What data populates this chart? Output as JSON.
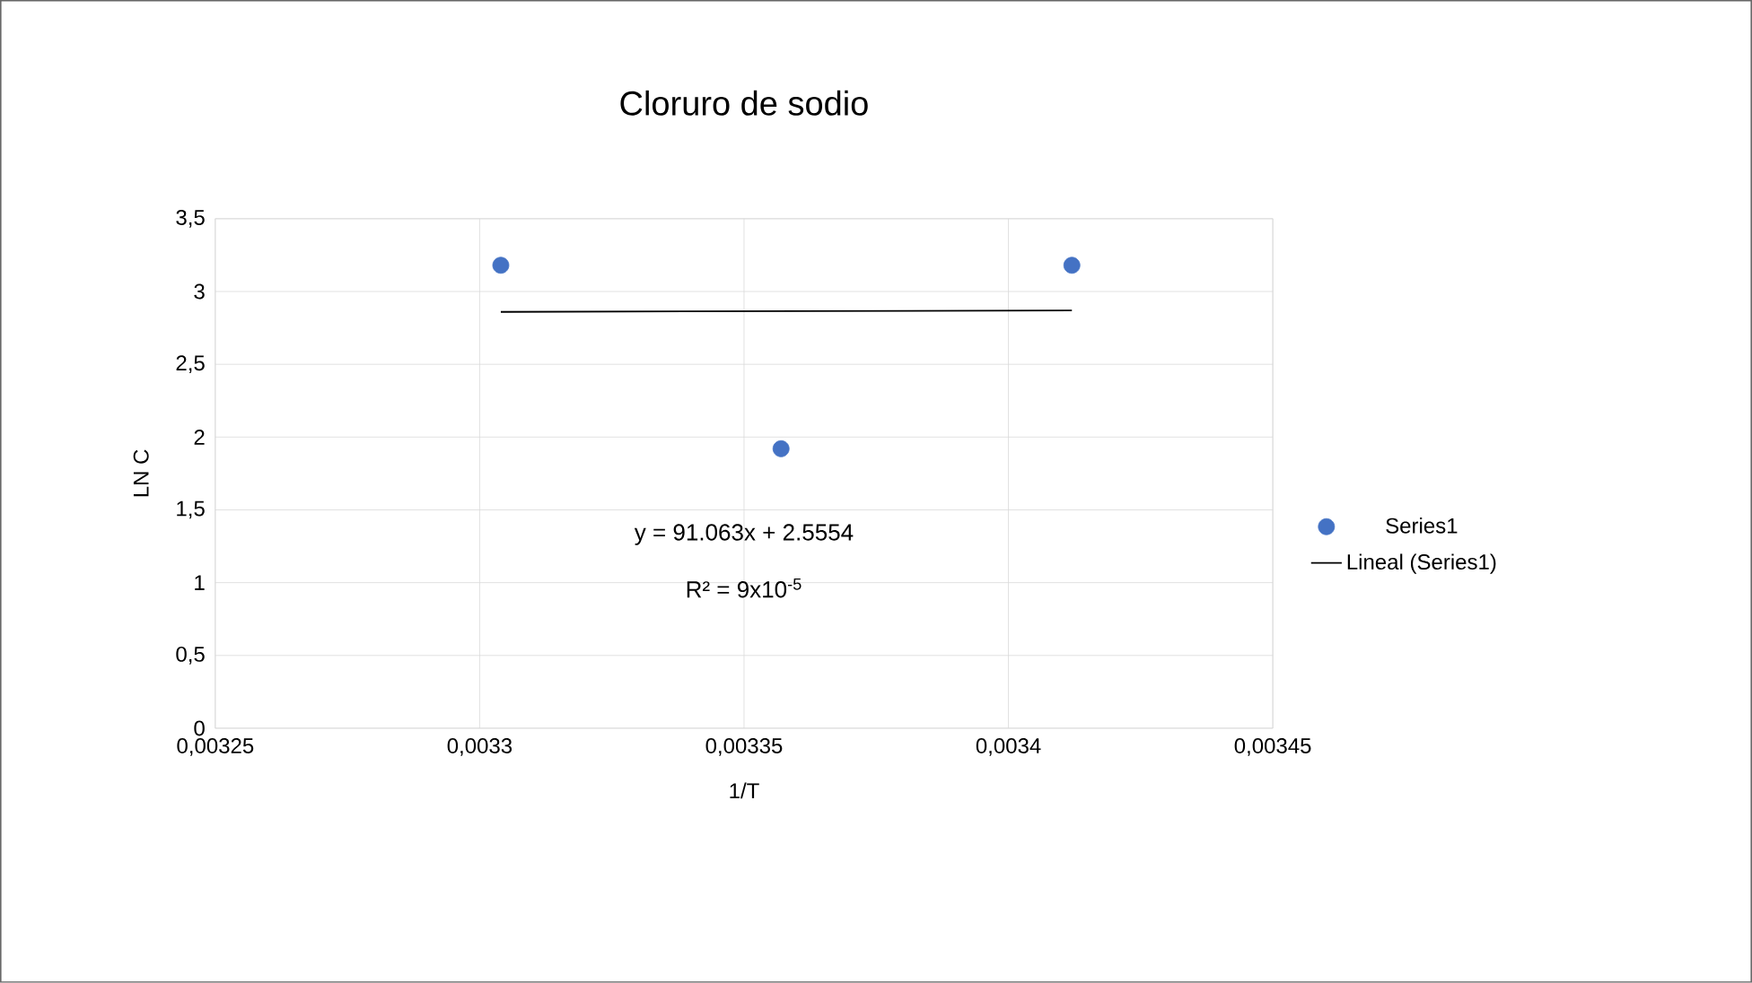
{
  "chart_data": {
    "type": "scatter",
    "title": "Cloruro de sodio",
    "xlabel": "1/T",
    "ylabel": "LN C",
    "xlim": [
      0.00325,
      0.00345
    ],
    "xticks": [
      {
        "value": 0.00325,
        "label": "0,00325"
      },
      {
        "value": 0.0033,
        "label": "0,0033"
      },
      {
        "value": 0.00335,
        "label": "0,00335"
      },
      {
        "value": 0.0034,
        "label": "0,0034"
      },
      {
        "value": 0.00345,
        "label": "0,00345"
      }
    ],
    "ylim": [
      0,
      3.5
    ],
    "yticks": [
      0,
      {
        "value": 0.5,
        "label": "0,5"
      },
      1,
      {
        "value": 1.5,
        "label": "1,5"
      },
      2,
      {
        "value": 2.5,
        "label": "2,5"
      },
      3,
      {
        "value": 3.5,
        "label": "3,5"
      }
    ],
    "grid": true,
    "legend": "right",
    "series": [
      {
        "name": "Series1",
        "marker": "circle",
        "color": "#4472c4",
        "x": [
          0.003304,
          0.003357,
          0.003412
        ],
        "values": [
          3.18,
          1.92,
          3.18
        ]
      },
      {
        "name": "Lineal (Series1)",
        "type": "line",
        "marker": "none",
        "line_style": "solid",
        "color": "#000000",
        "x": [
          0.003304,
          0.003412
        ],
        "values": [
          2.86,
          2.87
        ]
      }
    ],
    "annotations": [
      "y = 91.063x + 2.5554",
      "R² = 9x10$^{-5}$"
    ]
  }
}
